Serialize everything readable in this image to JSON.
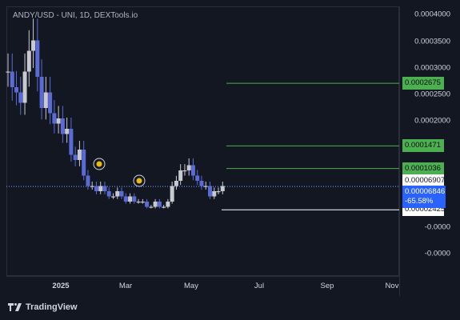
{
  "chart_data": {
    "type": "bar",
    "title": "ANDY/USD - UNI, 1D, DEXTools.io",
    "x_ticks": [
      "2025",
      "Mar",
      "May",
      "Jul",
      "Sep",
      "Nov"
    ],
    "y_ticks": [
      "0.0004000",
      "0.0003500",
      "0.0003000",
      "0.0002500",
      "0.0002000",
      "-0.0000",
      "-0.0000"
    ],
    "ylim": [
      -6e-05,
      0.0004
    ],
    "series": [
      {
        "x": [
          "2024-11-20",
          "2024-11-24",
          "2024-11-28",
          "2024-12-02",
          "2024-12-06",
          "2024-12-10",
          "2024-12-14",
          "2024-12-18",
          "2024-12-22",
          "2024-12-26",
          "2024-12-30",
          "2025-01-03",
          "2025-01-07",
          "2025-01-11",
          "2025-01-15",
          "2025-01-19",
          "2025-01-23",
          "2025-01-27",
          "2025-01-31",
          "2025-02-04",
          "2025-02-08",
          "2025-02-12",
          "2025-02-16",
          "2025-02-20",
          "2025-02-24",
          "2025-02-28",
          "2025-03-04",
          "2025-03-08",
          "2025-03-12",
          "2025-03-16",
          "2025-03-20",
          "2025-03-24",
          "2025-03-28",
          "2025-04-01",
          "2025-04-05",
          "2025-04-09",
          "2025-04-13",
          "2025-04-17",
          "2025-04-21",
          "2025-04-25",
          "2025-04-29",
          "2025-05-03",
          "2025-05-07",
          "2025-05-11",
          "2025-05-15",
          "2025-05-19",
          "2025-05-23",
          "2025-05-27",
          "2025-05-31",
          "2025-06-04",
          "2025-06-08",
          "2025-06-12"
        ],
        "values": [
          0.00029,
          0.00026,
          0.00025,
          0.00023,
          0.00029,
          0.00033,
          0.00035,
          0.00028,
          0.00022,
          0.00025,
          0.00021,
          0.00019,
          0.0002,
          0.00017,
          0.00018,
          0.00013,
          0.00012,
          0.00014,
          9e-05,
          7e-05,
          7e-05,
          6e-05,
          7e-05,
          6e-05,
          5e-05,
          5e-05,
          6e-05,
          5e-05,
          4e-05,
          5e-05,
          4e-05,
          4e-05,
          4e-05,
          3e-05,
          3e-05,
          4e-05,
          3e-05,
          3e-05,
          4e-05,
          7e-05,
          8e-05,
          0.0001,
          0.0001,
          0.00011,
          9e-05,
          8e-05,
          7e-05,
          7e-05,
          5e-05,
          6e-05,
          6e-05,
          7e-05
        ]
      }
    ],
    "levels": [
      {
        "value": 0.0002675,
        "label": "0.0002675",
        "color": "#4caf50"
      },
      {
        "value": 0.0001471,
        "label": "0.0001471",
        "color": "#4caf50"
      },
      {
        "value": 0.0001036,
        "label": "0.0001036",
        "color": "#4caf50"
      },
      {
        "value": 6.907e-05,
        "label": "0.00006907",
        "color": "#ffffff"
      },
      {
        "value": 2.425e-05,
        "label": "0.00002425",
        "color": "#ffffff"
      }
    ],
    "current": {
      "value": 6.846e-05,
      "label": "0.00006846",
      "change": "-65.58%",
      "color": "#2962ff"
    },
    "candle_color": "#5b6bd6",
    "candle_color_alt": "#c8cad0",
    "grid": false
  },
  "footer": {
    "brand": "TradingView"
  }
}
